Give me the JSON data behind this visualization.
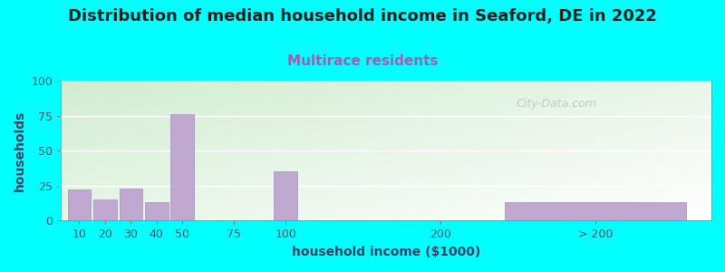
{
  "title": "Distribution of median household income in Seaford, DE in 2022",
  "subtitle": "Multirace residents",
  "xlabel": "household income ($1000)",
  "ylabel": "households",
  "background_outer": "#00FFFF",
  "bar_color": "#c0a8d0",
  "bar_edge_color": "#a090b8",
  "categories": [
    "10",
    "20",
    "30",
    "40",
    "50",
    "75",
    "100",
    "200",
    "> 200"
  ],
  "values": [
    22,
    15,
    23,
    13,
    76,
    0,
    35,
    0,
    13
  ],
  "ylim": [
    0,
    100
  ],
  "yticks": [
    0,
    25,
    50,
    75,
    100
  ],
  "title_fontsize": 13,
  "subtitle_fontsize": 11,
  "subtitle_color": "#a060b0",
  "axis_label_fontsize": 10,
  "tick_fontsize": 9,
  "title_color": "#202020",
  "watermark": "City-Data.com",
  "x_positions": [
    0,
    1,
    2,
    3,
    4,
    6,
    8,
    14,
    20
  ],
  "bar_widths": [
    0.9,
    0.9,
    0.9,
    0.9,
    0.9,
    0.9,
    0.9,
    0.9,
    7.0
  ]
}
